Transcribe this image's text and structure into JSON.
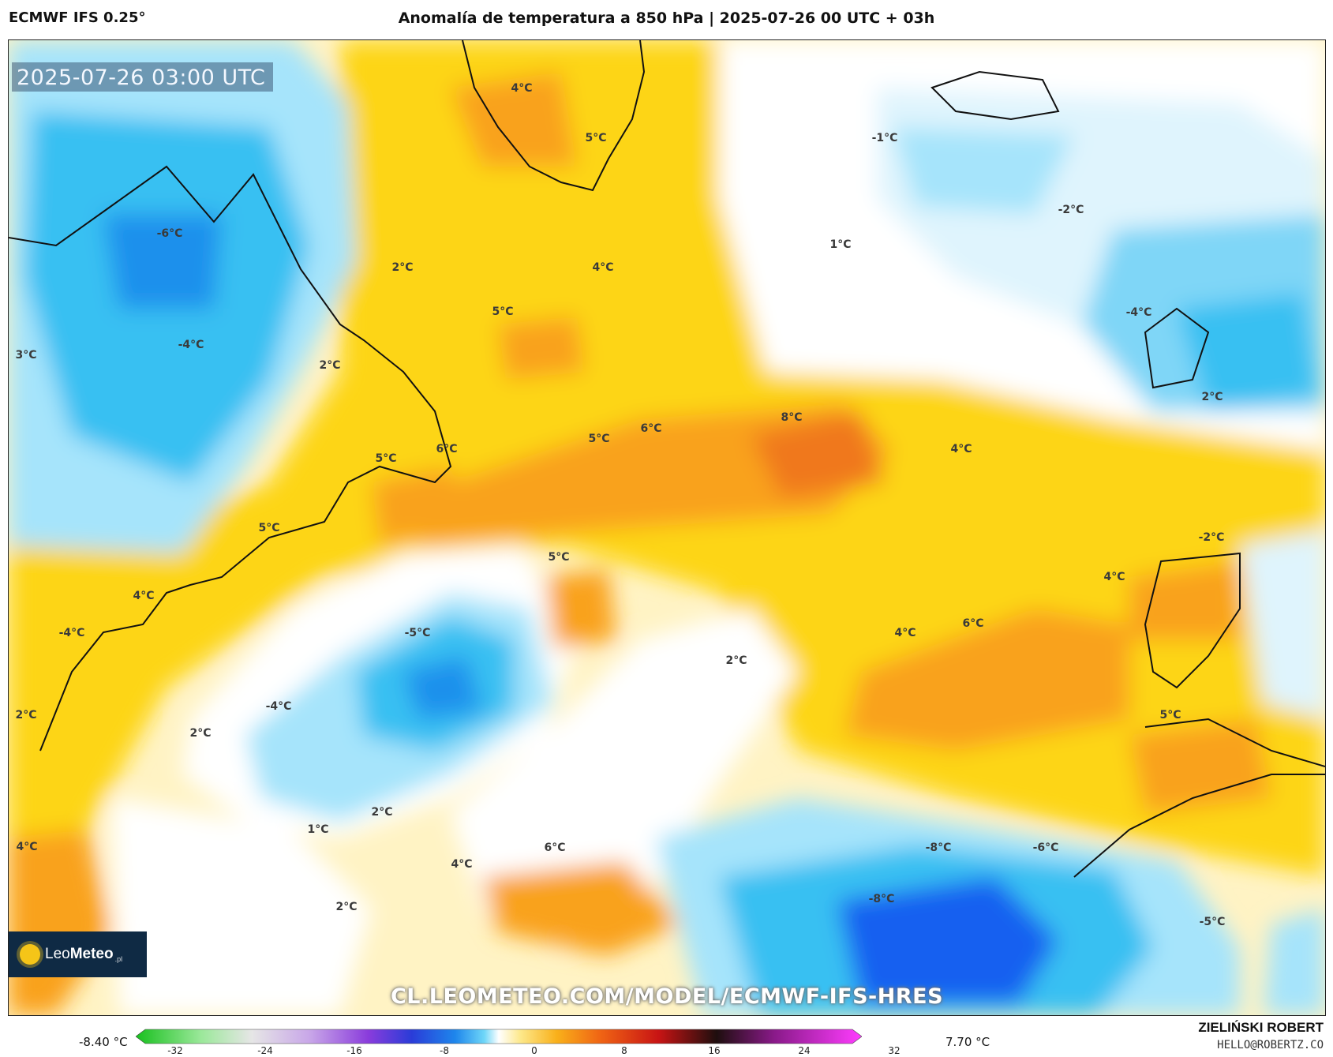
{
  "header": {
    "model": "ECMWF IFS 0.25°",
    "title": "Anomalía de temperatura a 850 hPa | 2025-07-26 00 UTC + 03h"
  },
  "map": {
    "timestamp": "2025-07-26 03:00 UTC",
    "url": "CL.LEOMETEO.COM/MODEL/ECMWF-IFS-HRES",
    "labels": [
      "4°C",
      "5°C",
      "-1°C",
      "-2°C",
      "-6°C",
      "1°C",
      "2°C",
      "4°C",
      "5°C",
      "-4°C",
      "-4°C",
      "3°C",
      "2°C",
      "5°C",
      "6°C",
      "5°C",
      "6°C",
      "8°C",
      "4°C",
      "2°C",
      "5°C",
      "-2°C",
      "5°C",
      "4°C",
      "-5°C",
      "4°C",
      "6°C",
      "4°C",
      "-4°C",
      "2°C",
      "2°C",
      "-4°C",
      "5°C",
      "2°C",
      "2°C",
      "1°C",
      "6°C",
      "4°C",
      "-8°C",
      "-6°C",
      "4°C",
      "2°C",
      "-8°C",
      "-5°C"
    ]
  },
  "logo": {
    "brand_light": "Leo",
    "brand_bold": "Meteo",
    "suffix": ".pl"
  },
  "colorbar": {
    "min_label": "-8.40 °C",
    "max_label": "7.70 °C",
    "ticks": [
      "-32",
      "-24",
      "-16",
      "-8",
      "0",
      "8",
      "16",
      "24",
      "32"
    ]
  },
  "credits": {
    "author": "ZIELIŃSKI ROBERT",
    "email": "HELLO@ROBERTZ.CO"
  },
  "colors": {
    "cold_deep": "#1560f0",
    "cold": "#38c0f2",
    "cool": "#a6e4fb",
    "neutral": "#ffffff",
    "warm_light": "#fff1b0",
    "warm": "#fdd515",
    "hot": "#f9a21e",
    "hotter": "#f0781a"
  }
}
